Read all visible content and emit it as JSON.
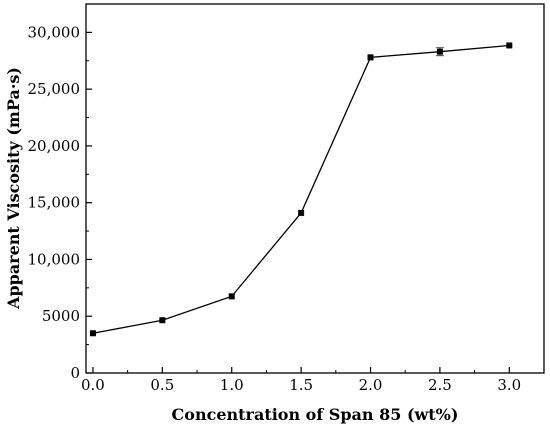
{
  "chart_data": {
    "type": "line",
    "xlabel": "Concentration of Span 85 (wt%)",
    "ylabel": "Apparent Viscosity (mPa·s)",
    "xlim": [
      -0.05,
      3.25
    ],
    "ylim": [
      0,
      32500
    ],
    "x_ticks": [
      0.0,
      0.5,
      1.0,
      1.5,
      2.0,
      2.5,
      3.0
    ],
    "x_tick_labels": [
      "0.0",
      "0.5",
      "1.0",
      "1.5",
      "2.0",
      "2.5",
      "3.0"
    ],
    "y_ticks": [
      0,
      5000,
      10000,
      15000,
      20000,
      25000,
      30000
    ],
    "y_tick_labels": [
      "0",
      "5000",
      "10,000",
      "15,000",
      "20,000",
      "25,000",
      "30,000"
    ],
    "grid": false,
    "series": [
      {
        "x": [
          0.0,
          0.5,
          1.0,
          1.5,
          2.0,
          2.5,
          3.0
        ],
        "y": [
          3500,
          4650,
          6750,
          14100,
          27800,
          28300,
          28850
        ],
        "error": [
          0,
          0,
          0,
          0,
          0,
          350,
          0
        ],
        "color": "#000000",
        "marker": "square"
      }
    ]
  }
}
